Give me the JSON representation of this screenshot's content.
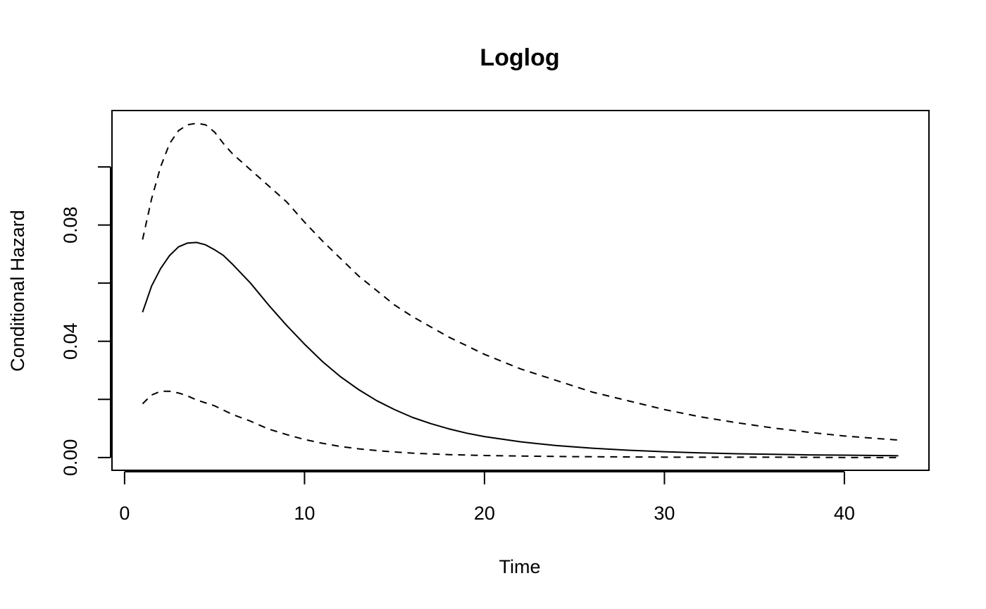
{
  "chart_data": {
    "type": "line",
    "title": "Loglog",
    "xlabel": "Time",
    "ylabel": "Conditional Hazard",
    "xlim": [
      -0.7,
      44.7
    ],
    "ylim": [
      -0.0044,
      0.1194
    ],
    "x_ticks": [
      0,
      10,
      20,
      30,
      40
    ],
    "x_tick_labels": [
      "0",
      "10",
      "20",
      "30",
      "40"
    ],
    "y_ticks": [
      0.0,
      0.02,
      0.04,
      0.06,
      0.08,
      0.1
    ],
    "y_tick_labels": [
      "0.00",
      "",
      "0.04",
      "",
      "0.08",
      ""
    ],
    "grid": false,
    "legend": "none",
    "series": [
      {
        "line_style": "solid",
        "x": [
          1,
          1.5,
          2,
          2.5,
          3,
          3.5,
          4,
          4.5,
          5,
          5.5,
          6,
          7,
          8,
          9,
          10,
          11,
          12,
          13,
          14,
          15,
          16,
          17,
          18,
          19,
          20,
          22,
          24,
          26,
          28,
          30,
          32,
          34,
          36,
          38,
          40,
          43
        ],
        "y": [
          0.05,
          0.059,
          0.065,
          0.0695,
          0.0725,
          0.0738,
          0.074,
          0.0732,
          0.0715,
          0.0695,
          0.0665,
          0.06,
          0.0525,
          0.0455,
          0.039,
          0.033,
          0.0278,
          0.0234,
          0.0196,
          0.0165,
          0.0138,
          0.0117,
          0.0099,
          0.0084,
          0.0072,
          0.0054,
          0.0041,
          0.0032,
          0.0025,
          0.002,
          0.0016,
          0.0013,
          0.0011,
          0.0009,
          0.0008,
          0.0006
        ]
      },
      {
        "line_style": "dashed",
        "x": [
          1,
          1.5,
          2,
          2.5,
          3,
          3.5,
          4,
          4.5,
          5,
          5.5,
          6,
          7,
          8,
          9,
          10,
          11,
          12,
          13,
          14,
          15,
          16,
          17,
          18,
          19,
          20,
          22,
          24,
          26,
          28,
          30,
          32,
          34,
          36,
          38,
          40,
          43
        ],
        "y": [
          0.075,
          0.089,
          0.1,
          0.108,
          0.1125,
          0.1145,
          0.115,
          0.1145,
          0.112,
          0.108,
          0.1045,
          0.099,
          0.0935,
          0.088,
          0.081,
          0.0745,
          0.0685,
          0.0625,
          0.0575,
          0.0525,
          0.0485,
          0.045,
          0.0415,
          0.0385,
          0.0355,
          0.0305,
          0.0265,
          0.0225,
          0.0195,
          0.0165,
          0.014,
          0.012,
          0.0102,
          0.0087,
          0.0074,
          0.006
        ]
      },
      {
        "line_style": "dashed",
        "x": [
          1,
          1.5,
          2,
          2.5,
          3,
          3.5,
          4,
          5,
          6,
          7,
          8,
          9,
          10,
          11,
          12,
          13,
          14,
          15,
          16,
          18,
          20,
          22,
          25,
          28,
          31,
          34,
          37,
          40,
          43
        ],
        "y": [
          0.0185,
          0.0215,
          0.0228,
          0.0228,
          0.0222,
          0.0212,
          0.0198,
          0.0178,
          0.0148,
          0.0125,
          0.0098,
          0.0079,
          0.0062,
          0.0049,
          0.0038,
          0.003,
          0.0024,
          0.0019,
          0.0015,
          0.001,
          0.0007,
          0.0005,
          0.0003,
          0.0002,
          0.0001,
          0.0001,
          0.0001,
          0.0,
          0.0
        ]
      }
    ]
  }
}
